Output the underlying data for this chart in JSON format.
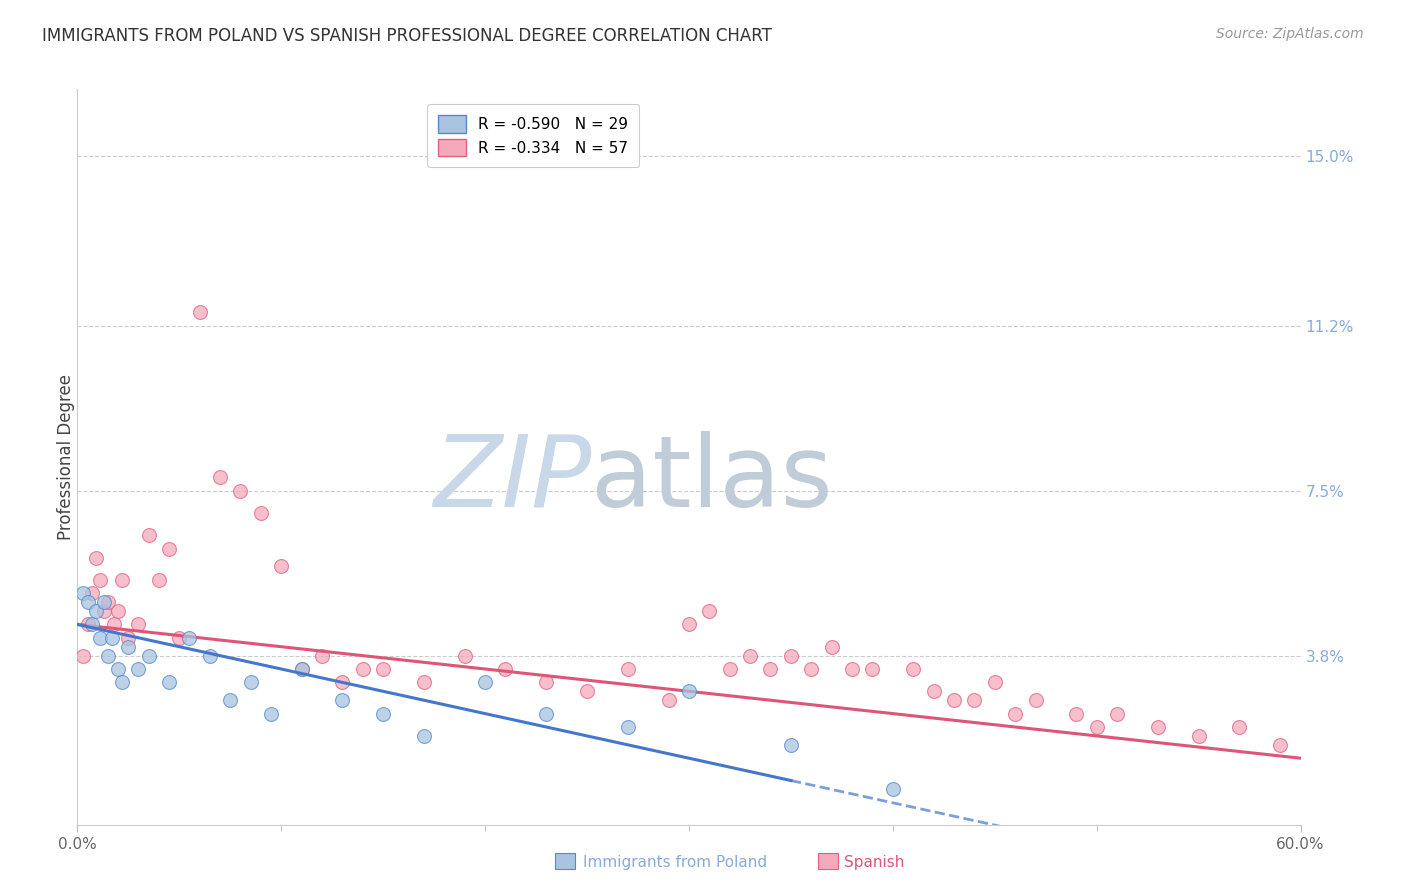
{
  "title": "IMMIGRANTS FROM POLAND VS SPANISH PROFESSIONAL DEGREE CORRELATION CHART",
  "source_text": "Source: ZipAtlas.com",
  "ylabel": "Professional Degree",
  "right_ytick_labels": [
    "15.0%",
    "11.2%",
    "7.5%",
    "3.8%"
  ],
  "right_ytick_values": [
    15.0,
    11.2,
    7.5,
    3.8
  ],
  "xlim": [
    0.0,
    60.0
  ],
  "ylim": [
    0.0,
    16.5
  ],
  "blue_R": -0.59,
  "blue_N": 29,
  "pink_R": -0.334,
  "pink_N": 57,
  "blue_color": "#A8C4E0",
  "pink_color": "#F5AABB",
  "blue_edge_color": "#5588CC",
  "pink_edge_color": "#E06080",
  "blue_line_color": "#4477CC",
  "pink_line_color": "#DD5577",
  "legend_label_blue": "Immigrants from Poland",
  "legend_label_pink": "Spanish",
  "watermark_zip": "ZIP",
  "watermark_atlas": "atlas",
  "watermark_color_zip": "#C8D8E8",
  "watermark_color_atlas": "#C0CCD8",
  "blue_x": [
    0.3,
    0.5,
    0.7,
    0.9,
    1.1,
    1.3,
    1.5,
    1.7,
    2.0,
    2.2,
    2.5,
    3.0,
    3.5,
    4.5,
    5.5,
    6.5,
    7.5,
    8.5,
    9.5,
    11.0,
    13.0,
    15.0,
    17.0,
    20.0,
    23.0,
    27.0,
    30.0,
    35.0,
    40.0
  ],
  "blue_y": [
    5.2,
    5.0,
    4.5,
    4.8,
    4.2,
    5.0,
    3.8,
    4.2,
    3.5,
    3.2,
    4.0,
    3.5,
    3.8,
    3.2,
    4.2,
    3.8,
    2.8,
    3.2,
    2.5,
    3.5,
    2.8,
    2.5,
    2.0,
    3.2,
    2.5,
    2.2,
    3.0,
    1.8,
    0.8
  ],
  "pink_x": [
    0.3,
    0.5,
    0.7,
    0.9,
    1.1,
    1.3,
    1.5,
    1.8,
    2.0,
    2.2,
    2.5,
    3.0,
    3.5,
    4.0,
    4.5,
    5.0,
    6.0,
    7.0,
    8.0,
    9.0,
    10.0,
    11.0,
    12.0,
    13.0,
    14.0,
    15.0,
    17.0,
    19.0,
    21.0,
    23.0,
    25.0,
    27.0,
    29.0,
    31.0,
    33.0,
    35.0,
    37.0,
    39.0,
    41.0,
    43.0,
    45.0,
    47.0,
    49.0,
    51.0,
    53.0,
    55.0,
    57.0,
    59.0,
    30.0,
    32.0,
    34.0,
    36.0,
    38.0,
    42.0,
    44.0,
    46.0,
    50.0
  ],
  "pink_y": [
    3.8,
    4.5,
    5.2,
    6.0,
    5.5,
    4.8,
    5.0,
    4.5,
    4.8,
    5.5,
    4.2,
    4.5,
    6.5,
    5.5,
    6.2,
    4.2,
    11.5,
    7.8,
    7.5,
    7.0,
    5.8,
    3.5,
    3.8,
    3.2,
    3.5,
    3.5,
    3.2,
    3.8,
    3.5,
    3.2,
    3.0,
    3.5,
    2.8,
    4.8,
    3.8,
    3.8,
    4.0,
    3.5,
    3.5,
    2.8,
    3.2,
    2.8,
    2.5,
    2.5,
    2.2,
    2.0,
    2.2,
    1.8,
    4.5,
    3.5,
    3.5,
    3.5,
    3.5,
    3.0,
    2.8,
    2.5,
    2.2
  ],
  "background_color": "#FFFFFF",
  "grid_color": "#CCCCCC"
}
